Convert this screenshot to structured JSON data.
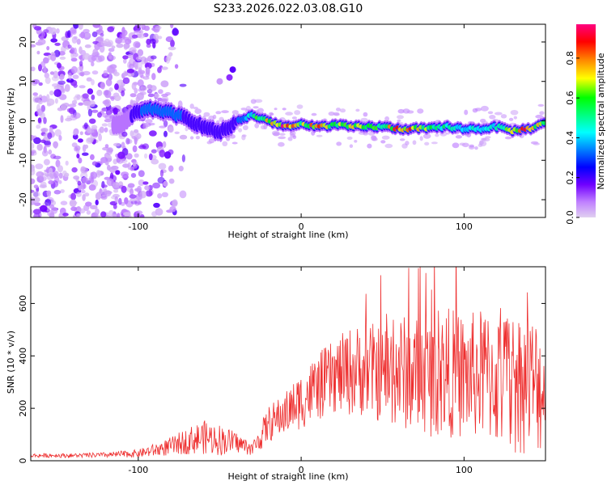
{
  "figure": {
    "title": "S233.2026.022.03.08.G10"
  },
  "chart_data": [
    {
      "type": "heatmap",
      "title": "S233.2026.022.03.08.G10",
      "xlabel": "Height of straight line (km)",
      "ylabel": "Frequency (Hz)",
      "xlim": [
        -166,
        150
      ],
      "ylim": [
        -24.5,
        24.5
      ],
      "xticks": [
        -100,
        0,
        100
      ],
      "xtick_labels": [
        "-100",
        "0",
        "100"
      ],
      "yticks": [
        -20,
        -10,
        0,
        10,
        20
      ],
      "ytick_labels": [
        "-20",
        "-10",
        "0",
        "10",
        "20"
      ],
      "colorbar": {
        "label": "Normalized spectral amplitude",
        "range": [
          0,
          0.97
        ],
        "ticks": [
          0.0,
          0.2,
          0.4,
          0.6,
          0.8
        ],
        "tick_labels": [
          "0.0",
          "0.2",
          "0.4",
          "0.6",
          "0.8"
        ],
        "colormap": [
          "#e0d0f0",
          "#c080ff",
          "#7000ff",
          "#0000ff",
          "#0080ff",
          "#00ffff",
          "#00ff80",
          "#00ff00",
          "#ffff00",
          "#ff8000",
          "#ff0000",
          "#ff0080"
        ]
      },
      "ridge": {
        "x": [
          -110,
          -100,
          -90,
          -80,
          -70,
          -60,
          -50,
          -40,
          -30,
          -20,
          -10,
          0,
          10,
          20,
          30,
          40,
          50,
          60,
          70,
          80,
          90,
          100,
          110,
          120,
          130,
          140,
          150
        ],
        "frequency": [
          -1.0,
          2.5,
          3.0,
          2.0,
          0.5,
          -1.5,
          -3.0,
          -0.5,
          1.5,
          0.0,
          -1.5,
          -1.0,
          -1.5,
          -1.0,
          -1.5,
          -1.5,
          -1.5,
          -2.0,
          -2.0,
          -2.0,
          -1.5,
          -2.0,
          -2.0,
          -1.5,
          -2.5,
          -2.0,
          -0.5
        ],
        "amplitude": [
          0.1,
          0.3,
          0.4,
          0.35,
          0.3,
          0.25,
          0.3,
          0.3,
          0.55,
          0.75,
          0.95,
          0.7,
          0.9,
          0.65,
          0.75,
          0.7,
          0.6,
          0.9,
          0.85,
          0.6,
          0.55,
          0.5,
          0.45,
          0.5,
          0.7,
          0.9,
          0.6
        ]
      },
      "noise_region_x": [
        -166,
        -100
      ]
    },
    {
      "type": "line",
      "xlabel": "Height of straight line (km)",
      "ylabel": "SNR (10 * v/v)",
      "xlim": [
        -166,
        150
      ],
      "ylim": [
        0,
        740
      ],
      "xticks": [
        -100,
        0,
        100
      ],
      "xtick_labels": [
        "-100",
        "0",
        "100"
      ],
      "yticks": [
        0,
        200,
        400,
        600
      ],
      "ytick_labels": [
        "0",
        "200",
        "400",
        "600"
      ],
      "line_color": "#ee3030",
      "envelope": {
        "x": [
          -166,
          -140,
          -120,
          -100,
          -90,
          -80,
          -70,
          -60,
          -50,
          -40,
          -30,
          -25,
          -20,
          -10,
          0,
          10,
          20,
          30,
          40,
          50,
          60,
          70,
          80,
          90,
          100,
          110,
          120,
          130,
          140,
          150
        ],
        "mean": [
          20,
          20,
          22,
          28,
          40,
          55,
          75,
          90,
          80,
          70,
          45,
          90,
          140,
          180,
          230,
          280,
          320,
          340,
          350,
          330,
          340,
          330,
          320,
          340,
          320,
          330,
          310,
          300,
          300,
          280
        ],
        "spread": [
          8,
          8,
          10,
          15,
          25,
          35,
          50,
          65,
          60,
          40,
          25,
          50,
          70,
          80,
          110,
          130,
          140,
          170,
          180,
          190,
          220,
          220,
          230,
          250,
          240,
          250,
          260,
          280,
          270,
          260
        ]
      }
    }
  ]
}
